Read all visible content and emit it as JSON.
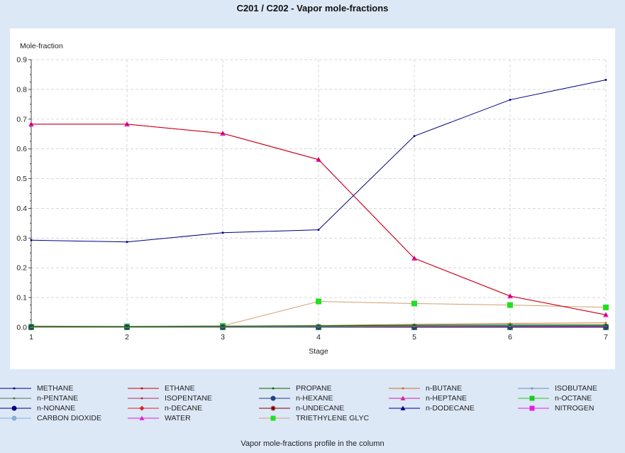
{
  "chart_data": {
    "type": "line",
    "title": "C201 / C202 - Vapor mole-fractions",
    "ylabel": "Mole-fraction",
    "xlabel": "Stage",
    "caption": "Vapor mole-fractions profile in the column",
    "x": [
      1,
      2,
      3,
      4,
      5,
      6,
      7
    ],
    "xlim": [
      1,
      7
    ],
    "ylim": [
      0,
      0.9
    ],
    "x_ticks": [
      "1",
      "2",
      "3",
      "4",
      "5",
      "6",
      "7"
    ],
    "y_ticks": [
      "0.0",
      "0.1",
      "0.2",
      "0.3",
      "0.4",
      "0.5",
      "0.6",
      "0.7",
      "0.8",
      "0.9"
    ],
    "grid": true,
    "legend_position": "bottom",
    "series": [
      {
        "name": "METHANE",
        "color": "#000080",
        "marker": "small",
        "values": [
          0.293,
          0.287,
          0.318,
          0.328,
          0.643,
          0.765,
          0.832
        ]
      },
      {
        "name": "ETHANE",
        "color": "#cc0000",
        "marker": "small",
        "values": [
          0.683,
          0.683,
          0.652,
          0.564,
          0.232,
          0.105,
          0.042
        ]
      },
      {
        "name": "PROPANE",
        "color": "#006400",
        "marker": "small",
        "values": [
          0.004,
          0.003,
          0.004,
          0.005,
          0.007,
          0.008,
          0.008
        ]
      },
      {
        "name": "n-BUTANE",
        "color": "#c87020",
        "marker": "small",
        "values": [
          0.002,
          0.002,
          0.004,
          0.006,
          0.01,
          0.013,
          0.015
        ]
      },
      {
        "name": "ISOBUTANE",
        "color": "#6b8fb5",
        "marker": "small",
        "values": [
          0.001,
          0.001,
          0.002,
          0.003,
          0.005,
          0.006,
          0.007
        ]
      },
      {
        "name": "n-PENTANE",
        "color": "#507850",
        "marker": "small",
        "values": [
          0.001,
          0.001,
          0.002,
          0.003,
          0.004,
          0.005,
          0.006
        ]
      },
      {
        "name": "ISOPENTANE",
        "color": "#b03060",
        "marker": "small",
        "values": [
          0.001,
          0.001,
          0.001,
          0.002,
          0.003,
          0.004,
          0.004
        ]
      },
      {
        "name": "n-HEXANE",
        "color": "#204080",
        "marker": "circle",
        "values": [
          0.001,
          0.001,
          0.001,
          0.001,
          0.002,
          0.002,
          0.002
        ]
      },
      {
        "name": "n-HEPTANE",
        "color": "#d020a0",
        "marker": "triangle",
        "values": [
          0.001,
          0.001,
          0.001,
          0.001,
          0.001,
          0.001,
          0.001
        ]
      },
      {
        "name": "n-OCTANE",
        "color": "#20c820",
        "marker": "square",
        "values": [
          0.0,
          0.0,
          0.0,
          0.0,
          0.001,
          0.001,
          0.001
        ]
      },
      {
        "name": "n-NONANE",
        "color": "#000080",
        "marker": "circle",
        "values": [
          0.0,
          0.0,
          0.0,
          0.0,
          0.0,
          0.0,
          0.0
        ]
      },
      {
        "name": "n-DECANE",
        "color": "#e02020",
        "marker": "diamond",
        "values": [
          0.0,
          0.0,
          0.0,
          0.0,
          0.0,
          0.0,
          0.0
        ]
      },
      {
        "name": "n-UNDECANE",
        "color": "#800000",
        "marker": "star",
        "values": [
          0.0,
          0.0,
          0.0,
          0.0,
          0.0,
          0.0,
          0.0
        ]
      },
      {
        "name": "n-DODECANE",
        "color": "#00008b",
        "marker": "triangle",
        "values": [
          0.0,
          0.0,
          0.0,
          0.0,
          0.0,
          0.0,
          0.0
        ]
      },
      {
        "name": "NITROGEN",
        "color": "#e020e0",
        "marker": "square",
        "values": [
          0.0,
          0.0,
          0.0,
          0.0,
          0.0,
          0.0,
          0.0
        ]
      },
      {
        "name": "CARBON DIOXIDE",
        "color": "#80b0e0",
        "marker": "circle",
        "values": [
          0.002,
          0.002,
          0.002,
          0.002,
          0.002,
          0.002,
          0.002
        ]
      },
      {
        "name": "WATER",
        "color": "#e020e0",
        "marker": "triangle",
        "values": [
          0.683,
          0.683,
          0.652,
          0.564,
          0.232,
          0.105,
          0.042
        ]
      },
      {
        "name": "TRIETHYLENE GLYC",
        "color": "#d2a070",
        "marker": "square",
        "marker_color": "#20e020",
        "values": [
          0.002,
          0.003,
          0.005,
          0.087,
          0.08,
          0.075,
          0.067
        ]
      }
    ]
  }
}
